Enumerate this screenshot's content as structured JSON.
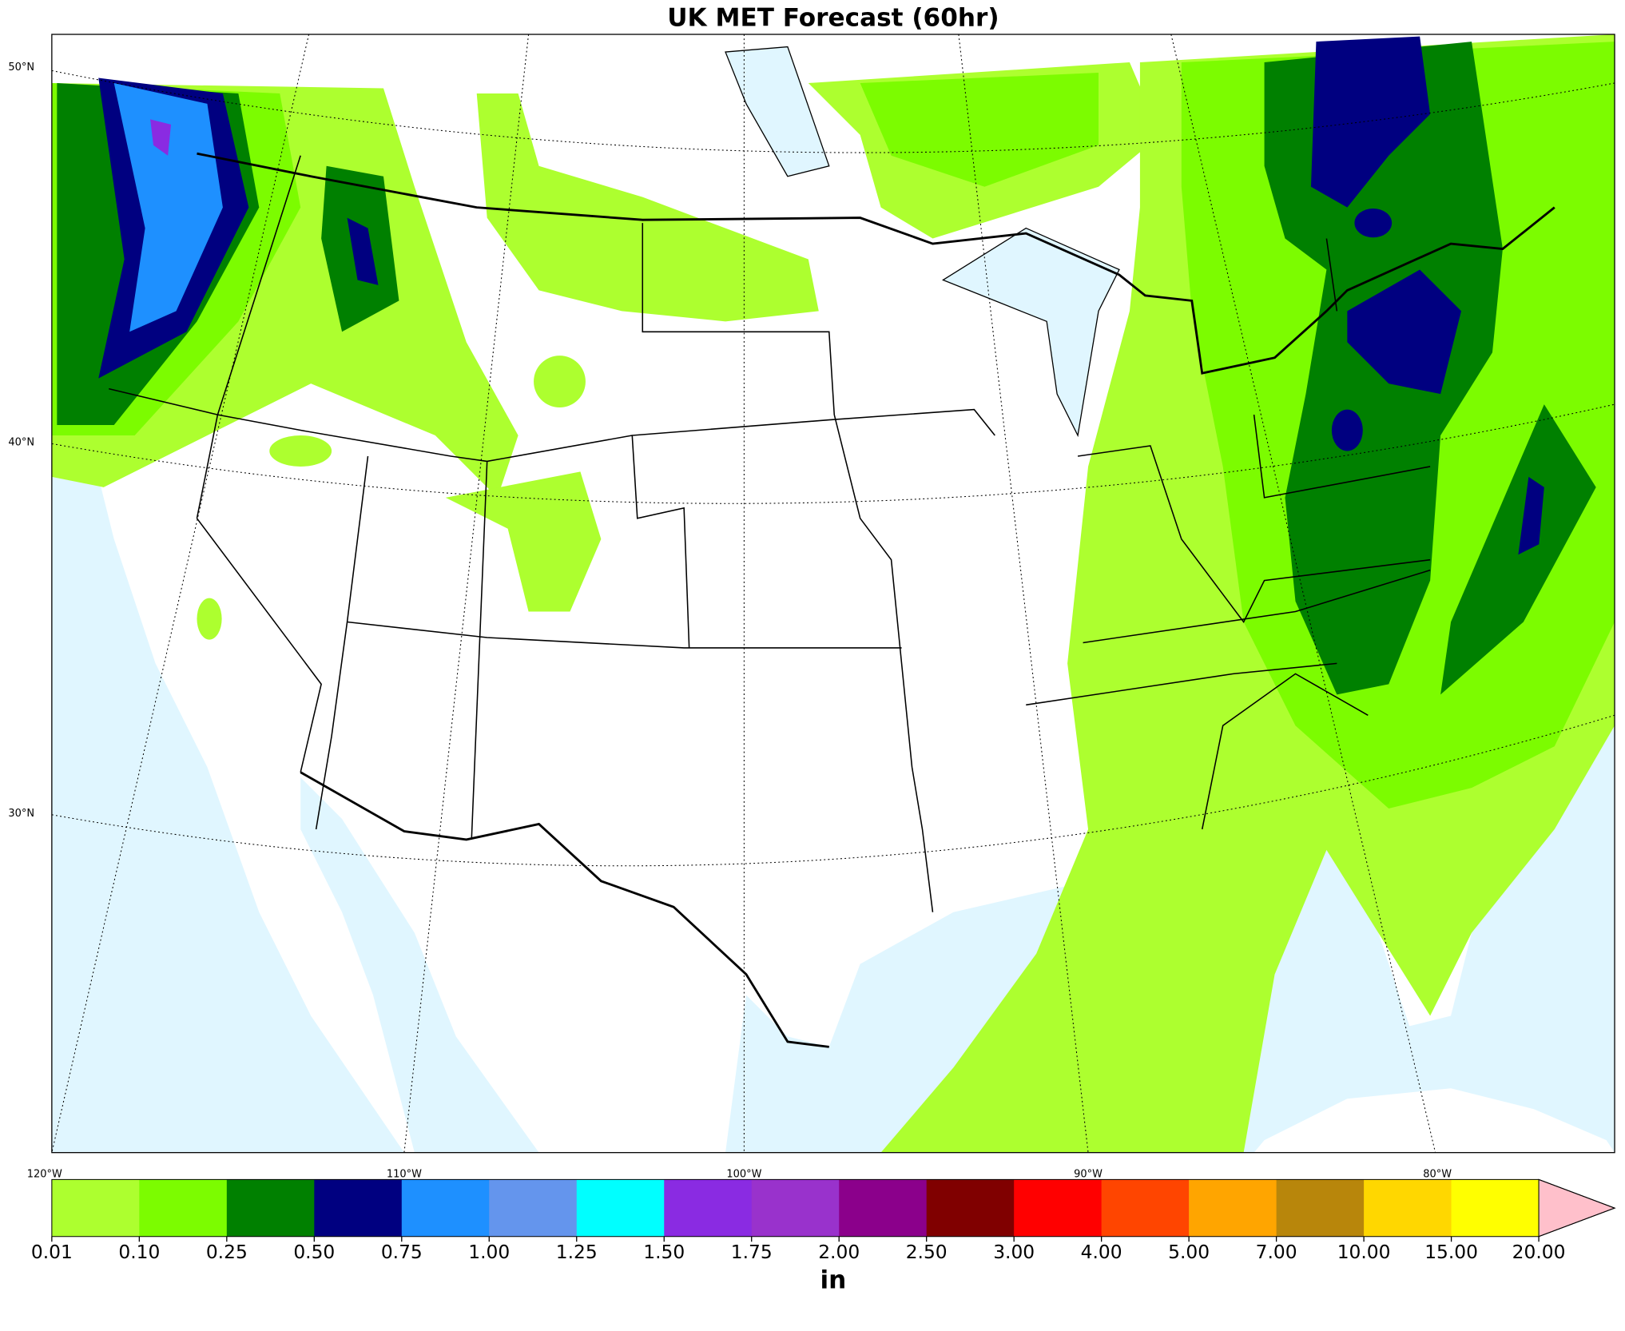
{
  "title": "UK MET Forecast (60hr)",
  "lat_labels": [
    "50°N",
    "40°N",
    "30°N"
  ],
  "lon_labels": [
    "120°W",
    "110°W",
    "100°W",
    "90°W",
    "80°W"
  ],
  "colorbar": {
    "label": "in",
    "levels": [
      0.01,
      {
        "value": 0.1,
        "label": "0.10"
      },
      0.25,
      {
        "value": 0.5,
        "label": "0.50"
      },
      0.75,
      {
        "value": 1,
        "label": "1.00"
      },
      1.25,
      {
        "value": 1.5,
        "label": "1.50"
      },
      1.75,
      {
        "value": 2,
        "label": "2.00"
      },
      {
        "value": 2.5,
        "label": "2.50"
      },
      {
        "value": 3,
        "label": "3.00"
      },
      {
        "value": 4,
        "label": "4.00"
      },
      {
        "value": 5,
        "label": "5.00"
      },
      {
        "value": 7,
        "label": "7.00"
      },
      {
        "value": 10,
        "label": "10.00"
      },
      {
        "value": 15,
        "label": "15.00"
      },
      {
        "value": 20,
        "label": "20.00"
      }
    ],
    "colors": [
      "#adff2f",
      "#7cfc00",
      "#008000",
      "#000080",
      "#1e90ff",
      "#6495ed",
      "#00ffff",
      "#8a2be2",
      "#9932cc",
      "#8b008b",
      "#800000",
      "#ff0000",
      "#ff4500",
      "#ffa500",
      "#b8860b",
      "#ffd700",
      "#ffff00"
    ],
    "extend_color": "#ffc0cb"
  }
}
